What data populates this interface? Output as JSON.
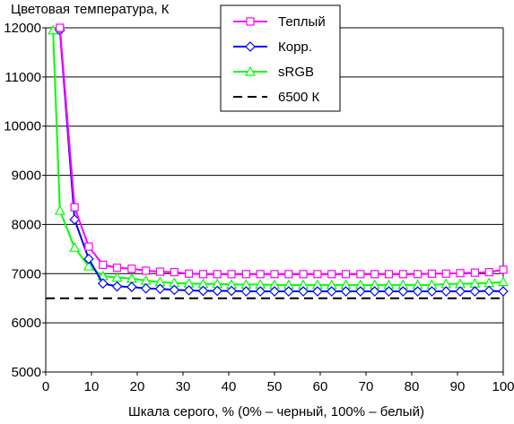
{
  "chart_data": {
    "type": "line",
    "title": "",
    "ylabel": "Цветовая температура, К",
    "xlabel": "Шкала серого, % (0% – черный, 100% – белый)",
    "xlim": [
      0,
      100
    ],
    "ylim": [
      5000,
      12000
    ],
    "xticks": [
      0,
      10,
      20,
      30,
      40,
      50,
      60,
      70,
      80,
      90,
      100
    ],
    "yticks": [
      5000,
      6000,
      7000,
      8000,
      9000,
      10000,
      11000,
      12000
    ],
    "grid": "horizontal",
    "legend_position": "top-center",
    "series": [
      {
        "name": "Теплый",
        "color": "#ff00ff",
        "marker": "square",
        "x": [
          3.1,
          6.3,
          9.4,
          12.5,
          15.6,
          18.8,
          21.9,
          25,
          28.1,
          31.3,
          34.4,
          37.5,
          40.6,
          43.8,
          46.9,
          50,
          53.1,
          56.3,
          59.4,
          62.5,
          65.6,
          68.8,
          71.9,
          75,
          78.1,
          81.3,
          84.4,
          87.5,
          90.6,
          93.8,
          96.9,
          100
        ],
        "y": [
          12000,
          8350,
          7550,
          7180,
          7120,
          7100,
          7060,
          7040,
          7030,
          7000,
          6990,
          6990,
          6990,
          6990,
          6990,
          6990,
          6990,
          6990,
          6990,
          6990,
          6990,
          6990,
          6990,
          6990,
          6990,
          6990,
          7000,
          7000,
          7010,
          7020,
          7030,
          7080
        ]
      },
      {
        "name": "Корр.",
        "color": "#0000ff",
        "marker": "diamond",
        "x": [
          3.1,
          6.3,
          9.4,
          12.5,
          15.6,
          18.8,
          21.9,
          25,
          28.1,
          31.3,
          34.4,
          37.5,
          40.6,
          43.8,
          46.9,
          50,
          53.1,
          56.3,
          59.4,
          62.5,
          65.6,
          68.8,
          71.9,
          75,
          78.1,
          81.3,
          84.4,
          87.5,
          90.6,
          93.8,
          96.9,
          100
        ],
        "y": [
          11950,
          8100,
          7300,
          6800,
          6740,
          6730,
          6700,
          6690,
          6670,
          6660,
          6650,
          6650,
          6650,
          6640,
          6640,
          6640,
          6640,
          6640,
          6640,
          6640,
          6640,
          6640,
          6640,
          6640,
          6640,
          6640,
          6640,
          6640,
          6640,
          6640,
          6650,
          6640
        ]
      },
      {
        "name": "sRGB",
        "color": "#00ff00",
        "marker": "triangle",
        "x": [
          1.6,
          3.1,
          6.3,
          9.4,
          12.5,
          15.6,
          18.8,
          21.9,
          25,
          28.1,
          31.3,
          34.4,
          37.5,
          40.6,
          43.8,
          46.9,
          50,
          53.1,
          56.3,
          59.4,
          62.5,
          65.6,
          68.8,
          71.9,
          75,
          78.1,
          81.3,
          84.4,
          87.5,
          90.6,
          93.8,
          96.9,
          100
        ],
        "y": [
          11950,
          8280,
          7530,
          7150,
          6950,
          6920,
          6900,
          6860,
          6830,
          6810,
          6800,
          6790,
          6790,
          6780,
          6780,
          6780,
          6770,
          6770,
          6770,
          6770,
          6770,
          6770,
          6770,
          6770,
          6770,
          6770,
          6770,
          6770,
          6790,
          6790,
          6800,
          6810,
          6830
        ]
      },
      {
        "name": "6500 К",
        "color": "#000000",
        "marker": "none",
        "dashed": true,
        "x": [
          0,
          100
        ],
        "y": [
          6500,
          6500
        ]
      }
    ]
  }
}
